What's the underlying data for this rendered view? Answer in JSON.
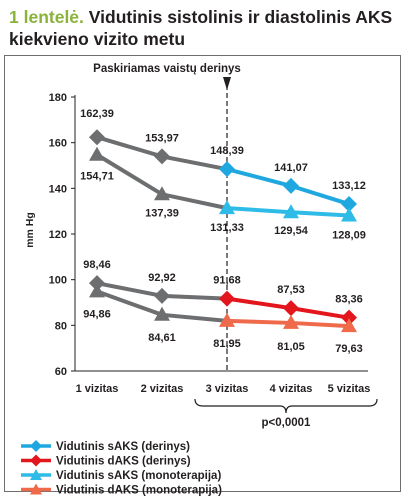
{
  "title": {
    "prefix": "1 lentelė.",
    "text": "Vidutinis sistolinis ir diastolinis AKS kiekvieno vizito metu"
  },
  "annotations": {
    "marker_label": "Paskiriamas vaistų derinys",
    "pvalue": "p<0,0001"
  },
  "chart_data": {
    "type": "line",
    "categories": [
      "1 vizitas",
      "2 vizitas",
      "3 vizitas",
      "4 vizitas",
      "5 vizitas"
    ],
    "ylabel": "mm Hg",
    "xlabel": "",
    "ylim": [
      60,
      180
    ],
    "yticks": [
      60,
      80,
      100,
      120,
      140,
      160,
      180
    ],
    "grid": false,
    "legend_position": "bottom-left",
    "vertical_marker_at": "3 vizitas",
    "series": [
      {
        "name": "Vidutinis sAKS (derinys)",
        "values": [
          162.39,
          153.97,
          148.39,
          141.07,
          133.12
        ],
        "labels": [
          "162,39",
          "153,97",
          "148,39",
          "141,07",
          "133,12"
        ],
        "color": "#1fa8e0",
        "marker": "diamond"
      },
      {
        "name": "Vidutinis dAKS (derinys)",
        "values": [
          98.46,
          92.92,
          91.68,
          87.53,
          83.36
        ],
        "labels": [
          "98,46",
          "92,92",
          "91,68",
          "87,53",
          "83,36"
        ],
        "color": "#e3161d",
        "marker": "diamond"
      },
      {
        "name": "Vidutinis sAKS (monoterapija)",
        "values": [
          154.71,
          137.39,
          131.33,
          129.54,
          128.09
        ],
        "labels": [
          "154,71",
          "137,39",
          "131,33",
          "129,54",
          "128,09"
        ],
        "color": "#2ebbe8",
        "marker": "triangle"
      },
      {
        "name": "Vidutinis dAKS (monoterapija)",
        "values": [
          94.86,
          84.61,
          81.95,
          81.05,
          79.63
        ],
        "labels": [
          "94,86",
          "84,61",
          "81,95",
          "81,05",
          "79,63"
        ],
        "color": "#ef6a4a",
        "marker": "triangle"
      }
    ],
    "pre_period_color": "#6d6e70"
  }
}
